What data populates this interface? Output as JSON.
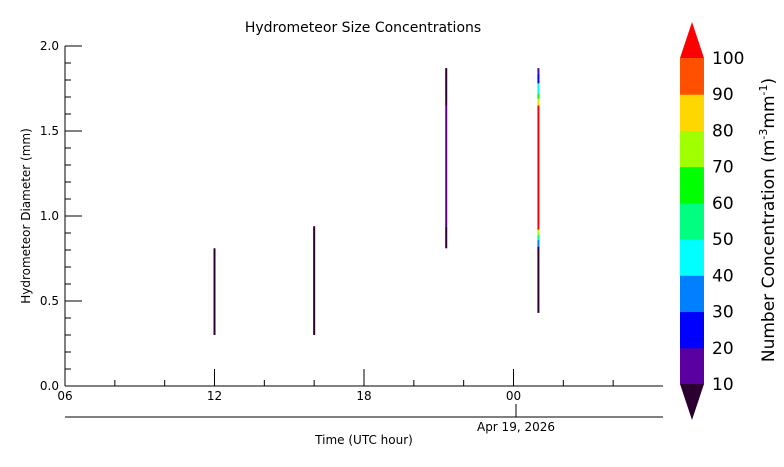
{
  "chart_data": {
    "type": "heatmap",
    "title": "Hydrometeor Size Concentrations",
    "xlabel": "Time (UTC hour)",
    "ylabel": "Hydrometeor Diameter (mm)",
    "date_label": "Apr 19, 2026",
    "x_unit": "hours from 2026-04-18 06:00 UTC",
    "xlim": [
      0,
      24
    ],
    "ylim": [
      0,
      2.0
    ],
    "x_ticks": [
      {
        "x": 0,
        "label": "06"
      },
      {
        "x": 6,
        "label": "12"
      },
      {
        "x": 12,
        "label": "18"
      },
      {
        "x": 18,
        "label": "00"
      }
    ],
    "y_ticks": [
      {
        "y": 0.0,
        "label": "0.0"
      },
      {
        "y": 0.5,
        "label": "0.5"
      },
      {
        "y": 1.0,
        "label": "1.0"
      },
      {
        "y": 1.5,
        "label": "1.5"
      },
      {
        "y": 2.0,
        "label": "2.0"
      }
    ],
    "colorbar": {
      "label": "Number Concentration (m",
      "label_sup1": "-3",
      "label_mid": "mm",
      "label_sup2": "-1",
      "label_end": ")",
      "levels": [
        10,
        20,
        30,
        40,
        50,
        60,
        70,
        80,
        90,
        100
      ],
      "tick_labels": [
        "10",
        "20",
        "30",
        "40",
        "50",
        "60",
        "70",
        "80",
        "90",
        "100"
      ],
      "under_color": "#2b0030",
      "over_color": "#ff0000",
      "colors": [
        "#5a00a0",
        "#0000ff",
        "#0080ff",
        "#00ffff",
        "#00ff80",
        "#00ff00",
        "#a0ff00",
        "#ffd700",
        "#ff5000"
      ]
    },
    "series": [
      {
        "x": 6.0,
        "segments": [
          {
            "y0": 0.3,
            "y1": 0.81,
            "value": 8
          }
        ]
      },
      {
        "x": 10.0,
        "segments": [
          {
            "y0": 0.3,
            "y1": 0.94,
            "value": 8
          }
        ]
      },
      {
        "x": 15.3,
        "segments": [
          {
            "y0": 0.81,
            "y1": 0.94,
            "value": 8
          },
          {
            "y0": 0.94,
            "y1": 1.65,
            "value": 15
          },
          {
            "y0": 1.65,
            "y1": 1.87,
            "value": 8
          }
        ]
      },
      {
        "x": 19.0,
        "segments": [
          {
            "y0": 0.43,
            "y1": 0.82,
            "value": 8
          },
          {
            "y0": 0.82,
            "y1": 0.86,
            "value": 35
          },
          {
            "y0": 0.86,
            "y1": 0.89,
            "value": 55
          },
          {
            "y0": 0.89,
            "y1": 0.92,
            "value": 75
          },
          {
            "y0": 0.92,
            "y1": 1.65,
            "value": 105
          },
          {
            "y0": 1.65,
            "y1": 1.69,
            "value": 85
          },
          {
            "y0": 1.69,
            "y1": 1.72,
            "value": 65
          },
          {
            "y0": 1.72,
            "y1": 1.78,
            "value": 45
          },
          {
            "y0": 1.78,
            "y1": 1.84,
            "value": 25
          },
          {
            "y0": 1.84,
            "y1": 1.87,
            "value": 15
          }
        ]
      }
    ]
  }
}
